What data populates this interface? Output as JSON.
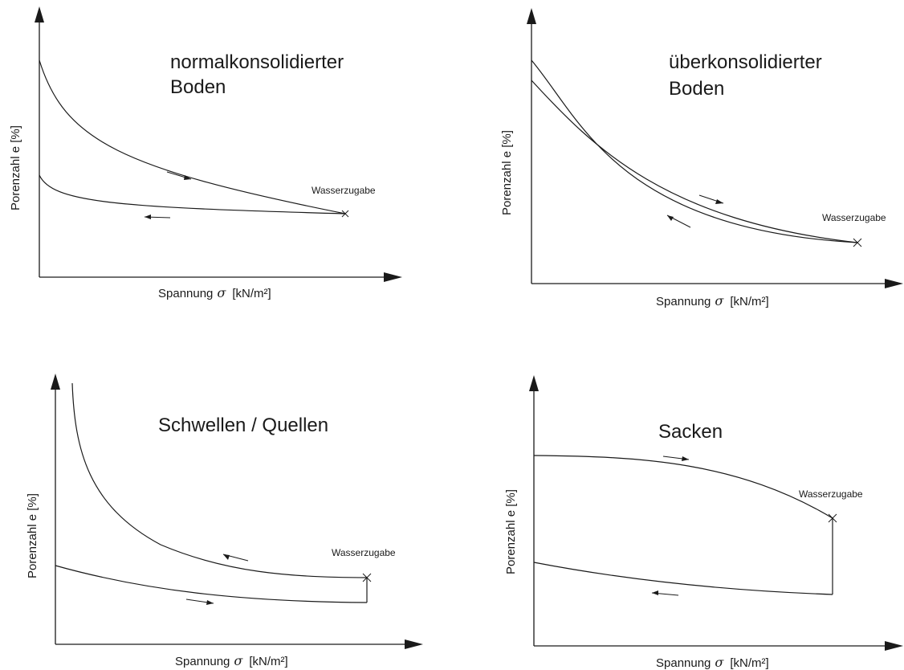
{
  "diagrams": [
    {
      "title_line1": "normalkonsolidierter",
      "title_line2": "Boden",
      "ylabel": "Porenzahl e [%]",
      "xlabel_prefix": "Spannung",
      "xlabel_symbol": "σ",
      "xlabel_unit": "[kN/m²]",
      "annotation": "Wasserzugabe"
    },
    {
      "title_line1": "überkonsolidierter",
      "title_line2": "Boden",
      "ylabel": "Porenzahl e [%]",
      "xlabel_prefix": "Spannung",
      "xlabel_symbol": "σ",
      "xlabel_unit": "[kN/m²]",
      "annotation": "Wasserzugabe"
    },
    {
      "title_line1": "Schwellen / Quellen",
      "ylabel": "Porenzahl e [%]",
      "xlabel_prefix": "Spannung",
      "xlabel_symbol": "σ",
      "xlabel_unit": "[kN/m²]",
      "annotation": "Wasserzugabe"
    },
    {
      "title_line1": "Sacken",
      "ylabel": "Porenzahl e [%]",
      "xlabel_prefix": "Spannung",
      "xlabel_symbol": "σ",
      "xlabel_unit": "[kN/m²]",
      "annotation": "Wasserzugabe"
    }
  ]
}
